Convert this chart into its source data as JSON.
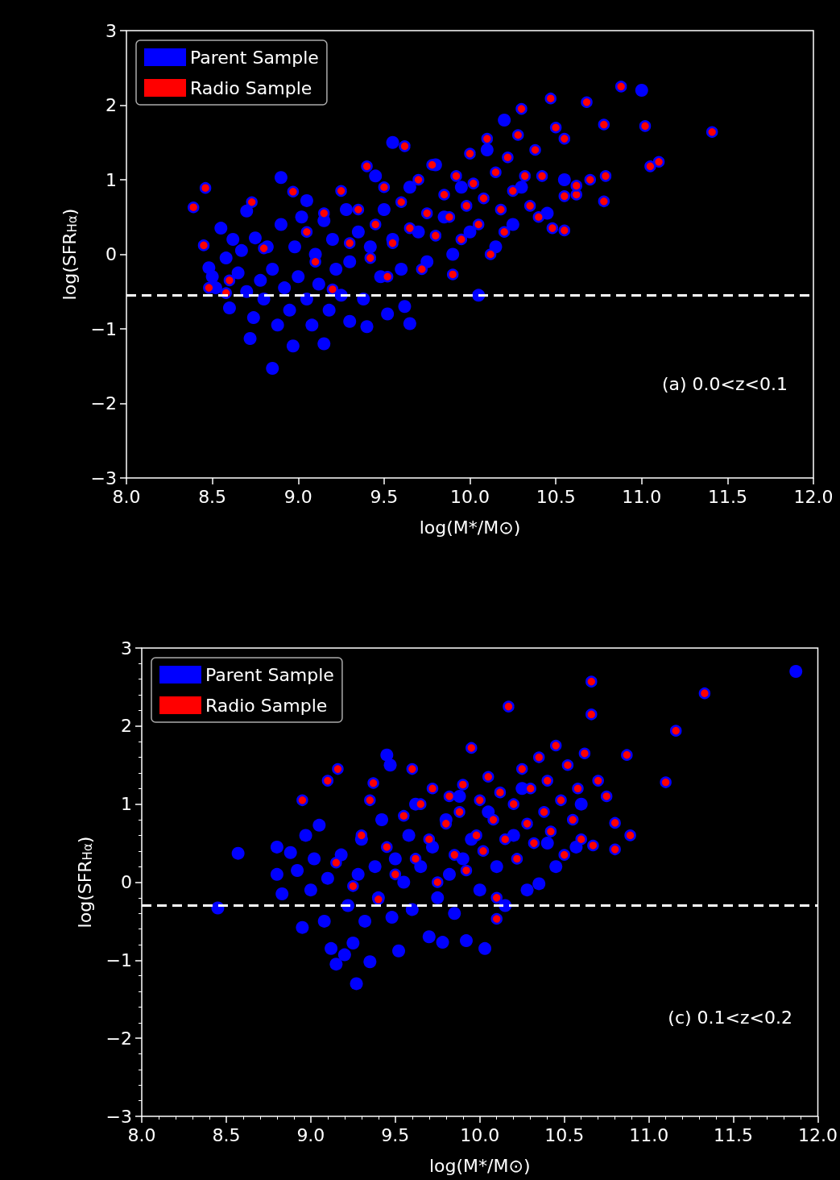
{
  "chart_data": [
    {
      "type": "scatter",
      "xlabel": "log(M*/M⊙)",
      "ylabel": "log(SFR$_{Hα}$)",
      "annotations": [
        "(a) 0.0<z<0.1"
      ],
      "legend": "top left",
      "grid": false,
      "marker": "circle",
      "xlim": [
        8,
        12
      ],
      "ylim": [
        -3,
        3
      ],
      "xticks": [
        {
          "value": 8,
          "label": "8.0"
        },
        {
          "value": 8.5,
          "label": "8.5"
        },
        {
          "value": 9,
          "label": "9.0"
        },
        {
          "value": 9.5,
          "label": "9.5"
        },
        {
          "value": 10,
          "label": "10.0"
        },
        {
          "value": 10.5,
          "label": "10.5"
        },
        {
          "value": 11,
          "label": "11.0"
        },
        {
          "value": 11.5,
          "label": "11.5"
        },
        {
          "value": 12,
          "label": "12.0"
        }
      ],
      "yticks": [
        {
          "value": -3,
          "label": "−3"
        },
        {
          "value": -2,
          "label": "−2"
        },
        {
          "value": -1,
          "label": "−1"
        },
        0,
        1,
        2,
        3
      ],
      "ref_lines": [
        {
          "axis": "y",
          "value": -0.55,
          "color": "#ffffff",
          "line_style": "dashed"
        }
      ],
      "series": [
        {
          "name": "Parent Sample",
          "color": "#0000ff",
          "x": [
            8.48,
            8.5,
            8.52,
            8.55,
            8.58,
            8.6,
            8.62,
            8.65,
            8.67,
            8.7,
            8.7,
            8.72,
            8.74,
            8.75,
            8.78,
            8.8,
            8.82,
            8.85,
            8.85,
            8.88,
            8.9,
            8.9,
            8.92,
            8.95,
            8.97,
            8.98,
            9.0,
            9.02,
            9.05,
            9.05,
            9.08,
            9.1,
            9.12,
            9.15,
            9.15,
            9.18,
            9.2,
            9.22,
            9.25,
            9.28,
            9.3,
            9.3,
            9.35,
            9.38,
            9.4,
            9.42,
            9.45,
            9.48,
            9.5,
            9.52,
            9.55,
            9.55,
            9.6,
            9.62,
            9.65,
            9.65,
            9.7,
            9.75,
            9.8,
            9.85,
            9.9,
            9.95,
            10.0,
            10.05,
            10.1,
            10.15,
            10.2,
            10.25,
            10.3,
            10.45,
            10.55,
            11.0
          ],
          "values": [
            -0.18,
            -0.3,
            -0.45,
            0.35,
            -0.05,
            -0.72,
            0.2,
            -0.25,
            0.05,
            -0.5,
            0.58,
            -1.13,
            -0.85,
            0.22,
            -0.35,
            -0.6,
            0.1,
            -1.53,
            -0.2,
            -0.95,
            1.03,
            0.4,
            -0.45,
            -0.75,
            -1.23,
            0.1,
            -0.3,
            0.5,
            -0.6,
            0.72,
            -0.95,
            0.0,
            -0.4,
            -1.2,
            0.45,
            -0.75,
            0.2,
            -0.2,
            -0.55,
            0.6,
            -0.9,
            -0.1,
            0.3,
            -0.6,
            -0.97,
            0.1,
            1.05,
            -0.3,
            0.6,
            -0.8,
            1.5,
            0.2,
            -0.2,
            -0.7,
            -0.93,
            0.9,
            0.3,
            -0.1,
            1.2,
            0.5,
            0.0,
            0.9,
            0.3,
            -0.55,
            1.4,
            0.1,
            1.8,
            0.4,
            0.9,
            0.55,
            1.0,
            2.2
          ]
        },
        {
          "name": "Radio Sample",
          "color": "#ff0000",
          "x": [
            8.39,
            8.45,
            8.46,
            8.48,
            8.58,
            8.6,
            8.73,
            8.8,
            8.97,
            9.05,
            9.1,
            9.15,
            9.2,
            9.25,
            9.3,
            9.35,
            9.4,
            9.42,
            9.45,
            9.5,
            9.52,
            9.55,
            9.6,
            9.62,
            9.65,
            9.7,
            9.72,
            9.75,
            9.78,
            9.8,
            9.85,
            9.88,
            9.9,
            9.92,
            9.95,
            9.98,
            10.0,
            10.02,
            10.05,
            10.08,
            10.1,
            10.12,
            10.15,
            10.18,
            10.2,
            10.22,
            10.25,
            10.28,
            10.3,
            10.32,
            10.35,
            10.38,
            10.4,
            10.42,
            10.47,
            10.48,
            10.5,
            10.55,
            10.55,
            10.55,
            10.62,
            10.62,
            10.68,
            10.7,
            10.78,
            10.78,
            10.79,
            10.88,
            11.02,
            11.05,
            11.1,
            11.41
          ],
          "values": [
            0.63,
            0.12,
            0.89,
            -0.45,
            -0.52,
            -0.35,
            0.7,
            0.08,
            0.84,
            0.3,
            -0.1,
            0.55,
            -0.47,
            0.85,
            0.15,
            0.6,
            1.18,
            -0.05,
            0.4,
            0.9,
            -0.3,
            0.15,
            0.7,
            1.45,
            0.35,
            1.0,
            -0.2,
            0.55,
            1.2,
            0.25,
            0.8,
            0.5,
            -0.27,
            1.05,
            0.2,
            0.65,
            1.35,
            0.95,
            0.4,
            0.75,
            1.55,
            0.0,
            1.1,
            0.6,
            0.3,
            1.3,
            0.85,
            1.6,
            1.95,
            1.05,
            0.65,
            1.4,
            0.5,
            1.05,
            2.09,
            0.35,
            1.7,
            0.32,
            1.55,
            0.78,
            0.8,
            0.92,
            2.04,
            1.0,
            0.71,
            1.74,
            1.05,
            2.25,
            1.72,
            1.18,
            1.24,
            1.64
          ]
        }
      ]
    },
    {
      "type": "scatter",
      "xlabel": "log(M*/M⊙)",
      "ylabel": "log(SFR$_{Hα}$)",
      "annotations": [
        "(c) 0.1<z<0.2"
      ],
      "legend": "top left",
      "grid": false,
      "marker": "circle",
      "xlim": [
        8,
        12
      ],
      "ylim": [
        -3,
        3
      ],
      "xticks": [
        {
          "value": 8,
          "label": "8.0"
        },
        {
          "value": 8.1,
          "label": null
        },
        {
          "value": 8.2,
          "label": null
        },
        {
          "value": 8.3,
          "label": null
        },
        {
          "value": 8.4,
          "label": null
        },
        {
          "value": 8.5,
          "label": "8.5"
        },
        {
          "value": 8.6,
          "label": null
        },
        {
          "value": 8.7,
          "label": null
        },
        {
          "value": 8.8,
          "label": null
        },
        {
          "value": 8.9,
          "label": null
        },
        {
          "value": 9,
          "label": "9.0"
        },
        {
          "value": 9.1,
          "label": null
        },
        {
          "value": 9.2,
          "label": null
        },
        {
          "value": 9.3,
          "label": null
        },
        {
          "value": 9.4,
          "label": null
        },
        {
          "value": 9.5,
          "label": "9.5"
        },
        {
          "value": 9.6,
          "label": null
        },
        {
          "value": 9.7,
          "label": null
        },
        {
          "value": 9.8,
          "label": null
        },
        {
          "value": 9.9,
          "label": null
        },
        {
          "value": 10,
          "label": "10.0"
        },
        {
          "value": 10.1,
          "label": null
        },
        {
          "value": 10.2,
          "label": null
        },
        {
          "value": 10.3,
          "label": null
        },
        {
          "value": 10.4,
          "label": null
        },
        {
          "value": 10.5,
          "label": "10.5"
        },
        {
          "value": 10.6,
          "label": null
        },
        {
          "value": 10.7,
          "label": null
        },
        {
          "value": 10.8,
          "label": null
        },
        {
          "value": 10.9,
          "label": null
        },
        {
          "value": 11,
          "label": "11.0"
        },
        {
          "value": 11.1,
          "label": null
        },
        {
          "value": 11.2,
          "label": null
        },
        {
          "value": 11.3,
          "label": null
        },
        {
          "value": 11.4,
          "label": null
        },
        {
          "value": 11.5,
          "label": "11.5"
        },
        {
          "value": 11.6,
          "label": null
        },
        {
          "value": 11.7,
          "label": null
        },
        {
          "value": 11.8,
          "label": null
        },
        {
          "value": 11.9,
          "label": null
        },
        {
          "value": 12,
          "label": "12.0"
        }
      ],
      "yticks": [
        {
          "value": -3,
          "label": "−3"
        },
        {
          "value": -2.8,
          "label": null
        },
        {
          "value": -2.6,
          "label": null
        },
        {
          "value": -2.4,
          "label": null
        },
        {
          "value": -2.2,
          "label": null
        },
        {
          "value": -2,
          "label": "−2"
        },
        {
          "value": -1.8,
          "label": null
        },
        {
          "value": -1.6,
          "label": null
        },
        {
          "value": -1.4,
          "label": null
        },
        {
          "value": -1.2,
          "label": null
        },
        {
          "value": -1,
          "label": "−1"
        },
        {
          "value": -0.8,
          "label": null
        },
        {
          "value": -0.6,
          "label": null
        },
        {
          "value": -0.4,
          "label": null
        },
        {
          "value": -0.2,
          "label": null
        },
        0,
        {
          "value": 0.2,
          "label": null
        },
        {
          "value": 0.4,
          "label": null
        },
        {
          "value": 0.6,
          "label": null
        },
        {
          "value": 0.8,
          "label": null
        },
        1,
        {
          "value": 1.2,
          "label": null
        },
        {
          "value": 1.4,
          "label": null
        },
        {
          "value": 1.6,
          "label": null
        },
        {
          "value": 1.8,
          "label": null
        },
        2,
        {
          "value": 2.2,
          "label": null
        },
        {
          "value": 2.4,
          "label": null
        },
        {
          "value": 2.6,
          "label": null
        },
        {
          "value": 2.8,
          "label": null
        },
        3
      ],
      "ref_lines": [
        {
          "axis": "y",
          "value": -0.3,
          "color": "#ffffff",
          "line_style": "dashed"
        }
      ],
      "series": [
        {
          "name": "Parent Sample",
          "color": "#0000ff",
          "x": [
            8.45,
            8.57,
            8.8,
            8.8,
            8.83,
            8.88,
            8.92,
            8.95,
            8.97,
            9.0,
            9.02,
            9.05,
            9.08,
            9.1,
            9.12,
            9.15,
            9.18,
            9.2,
            9.22,
            9.25,
            9.27,
            9.28,
            9.3,
            9.32,
            9.35,
            9.38,
            9.4,
            9.42,
            9.45,
            9.47,
            9.48,
            9.5,
            9.52,
            9.55,
            9.58,
            9.6,
            9.62,
            9.65,
            9.7,
            9.72,
            9.75,
            9.78,
            9.8,
            9.82,
            9.85,
            9.88,
            9.9,
            9.92,
            9.95,
            10.0,
            10.03,
            10.05,
            10.1,
            10.15,
            10.2,
            10.25,
            10.28,
            10.35,
            10.4,
            10.45,
            10.57,
            10.6,
            11.87
          ],
          "values": [
            -0.33,
            0.37,
            0.45,
            0.1,
            -0.15,
            0.38,
            0.15,
            -0.58,
            0.6,
            -0.1,
            0.3,
            0.73,
            -0.5,
            0.05,
            -0.85,
            -1.05,
            0.35,
            -0.93,
            -0.3,
            -0.78,
            -1.3,
            0.1,
            0.55,
            -0.5,
            -1.02,
            0.2,
            -0.2,
            0.8,
            1.63,
            1.5,
            -0.45,
            0.3,
            -0.88,
            0.0,
            0.6,
            -0.35,
            1.0,
            0.2,
            -0.7,
            0.45,
            -0.2,
            -0.77,
            0.8,
            0.1,
            -0.4,
            1.1,
            0.3,
            -0.75,
            0.55,
            -0.1,
            -0.85,
            0.9,
            0.2,
            -0.3,
            0.6,
            1.2,
            -0.1,
            -0.02,
            0.5,
            0.2,
            0.45,
            1.0,
            2.7
          ]
        },
        {
          "name": "Radio Sample",
          "color": "#ff0000",
          "x": [
            8.95,
            9.1,
            9.16,
            9.15,
            9.25,
            9.3,
            9.35,
            9.37,
            9.4,
            9.45,
            9.5,
            9.55,
            9.6,
            9.62,
            9.65,
            9.7,
            9.72,
            9.75,
            9.8,
            9.82,
            9.85,
            9.88,
            9.9,
            9.92,
            9.95,
            9.98,
            10.0,
            10.02,
            10.05,
            10.08,
            10.1,
            10.1,
            10.12,
            10.15,
            10.17,
            10.2,
            10.22,
            10.25,
            10.28,
            10.3,
            10.32,
            10.35,
            10.38,
            10.4,
            10.42,
            10.45,
            10.48,
            10.5,
            10.52,
            10.55,
            10.58,
            10.6,
            10.62,
            10.66,
            10.66,
            10.67,
            10.7,
            10.75,
            10.8,
            10.8,
            10.87,
            10.89,
            11.1,
            11.16,
            11.33
          ],
          "values": [
            1.05,
            1.3,
            1.45,
            0.25,
            -0.05,
            0.6,
            1.05,
            1.27,
            -0.22,
            0.45,
            0.1,
            0.85,
            1.45,
            0.3,
            1.0,
            0.55,
            1.2,
            0.0,
            0.75,
            1.1,
            0.35,
            0.9,
            1.25,
            0.15,
            1.72,
            0.6,
            1.05,
            0.4,
            1.35,
            0.8,
            -0.47,
            -0.2,
            1.15,
            0.55,
            2.25,
            1.0,
            0.3,
            1.45,
            0.75,
            1.2,
            0.5,
            1.6,
            0.9,
            1.3,
            0.65,
            1.75,
            1.05,
            0.35,
            1.5,
            0.8,
            1.2,
            0.55,
            1.65,
            2.15,
            2.57,
            0.47,
            1.3,
            1.1,
            0.76,
            0.42,
            1.63,
            0.6,
            1.28,
            1.94,
            2.42
          ]
        }
      ]
    }
  ]
}
